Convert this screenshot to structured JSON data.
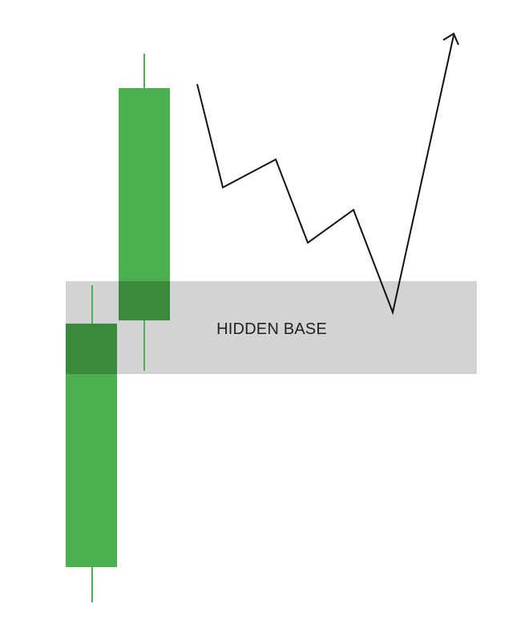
{
  "zone": {
    "label": "HIDDEN BASE",
    "fill_color": "#d3d3d3",
    "text_color": "#222222"
  },
  "candles": [
    {
      "name": "candle-lower",
      "direction": "bullish",
      "color": "#4caf50"
    },
    {
      "name": "candle-upper",
      "direction": "bullish",
      "color": "#4caf50"
    }
  ],
  "overlap_color": "#3a8a3e",
  "price_path": {
    "color": "#111111",
    "ends_with": "arrow-up"
  }
}
